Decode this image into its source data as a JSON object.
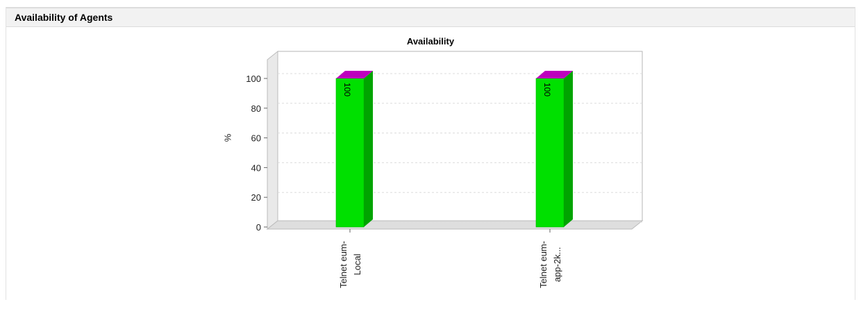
{
  "header": {
    "title": "Availability of Agents"
  },
  "chart": {
    "title": "Availability",
    "y_axis_label": "%"
  },
  "chart_data": {
    "type": "bar",
    "title": "Availability",
    "categories": [
      "Telnet eum-Local",
      "Telnet eum-app-2k..."
    ],
    "category_label_lines": [
      [
        "Telnet eum-",
        "Local"
      ],
      [
        "Telnet eum-",
        "app-2k..."
      ]
    ],
    "values": [
      100,
      100
    ],
    "value_labels": [
      "100",
      "100"
    ],
    "xlabel": "",
    "ylabel": "%",
    "ylim": [
      0,
      115
    ],
    "yticks": [
      0,
      20,
      40,
      60,
      80,
      100
    ],
    "grid": "horizontal-dashed",
    "legend": "none",
    "style": "3d-bars",
    "colors": {
      "bar_front": "#00e000",
      "bar_side": "#00a400",
      "bar_top": "#be00be",
      "wall_fill": "#e9e9e9",
      "wall_edge": "#bbbbbb",
      "floor_fill": "#dedede",
      "gridline": "#dcdcdc",
      "plot_border": "#b4b4b4",
      "tick": "#666666",
      "text": "#222222"
    }
  }
}
